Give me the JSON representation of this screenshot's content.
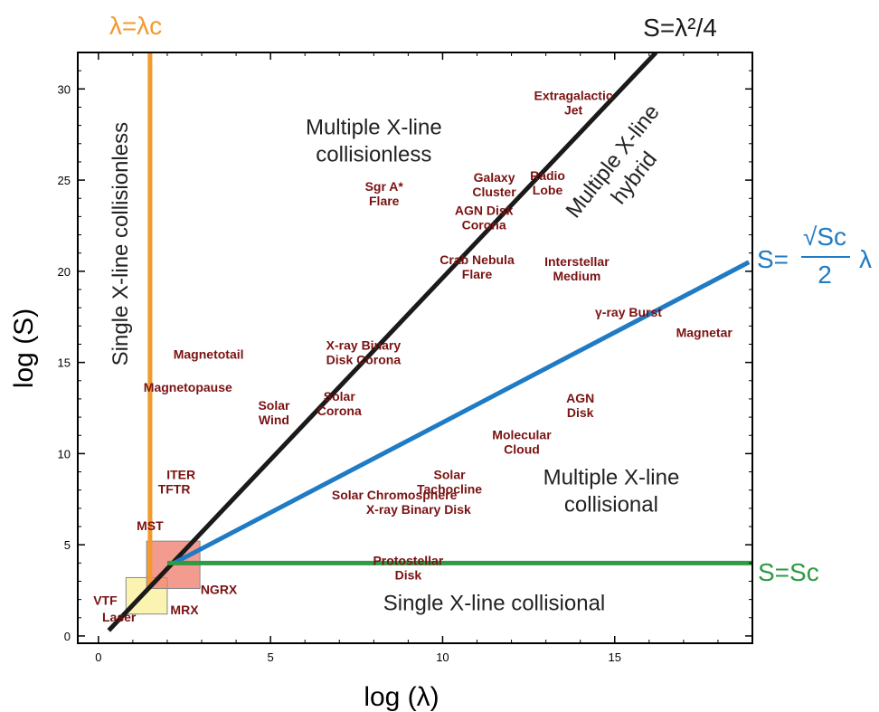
{
  "chart_data": {
    "type": "line",
    "xlabel": "log (λ)",
    "ylabel": "log (S)",
    "xlim": [
      0,
      19
    ],
    "ylim": [
      0,
      32
    ],
    "xticks": [
      0,
      5,
      10,
      15
    ],
    "yticks": [
      0,
      5,
      10,
      15,
      20,
      25,
      30
    ],
    "grid": false,
    "colors": {
      "lambda_c": "#f39a2b",
      "s_lambda2": "#1a1a1a",
      "s_sqrt": "#1f7bc4",
      "s_c": "#2f9a44",
      "objects": "#7a1212",
      "region_red": "#f07a6a",
      "region_yellow": "#fbf3a8"
    },
    "series": [
      {
        "key": "lambda_c",
        "label": "λ=λc",
        "x": [
          1.5,
          1.5
        ],
        "y": [
          2.6,
          32
        ]
      },
      {
        "key": "s_lambda2",
        "label": "S=λ²/4",
        "x": [
          0.3,
          16.2
        ],
        "y": [
          0.3,
          32
        ]
      },
      {
        "key": "s_sqrt",
        "label_prefix": "S=",
        "label_num": "√Sc",
        "label_den": "2",
        "label_suffix": "λ",
        "x": [
          2.2,
          18.9
        ],
        "y": [
          4.0,
          20.5
        ]
      },
      {
        "key": "s_c",
        "label": "S=Sc",
        "x": [
          2.0,
          19.0
        ],
        "y": [
          4.0,
          4.0
        ]
      }
    ],
    "shaded_regions": [
      {
        "key": "region_yellow",
        "x": [
          0.8,
          2.0
        ],
        "y": [
          1.2,
          3.2
        ]
      },
      {
        "key": "region_red",
        "x": [
          1.4,
          2.95
        ],
        "y": [
          2.6,
          5.2
        ]
      }
    ],
    "regions": [
      {
        "lines": [
          "Multiple X-line",
          "collisionless"
        ],
        "x": 8.0,
        "y": 27.5
      },
      {
        "lines": [
          "Single X-line collisionless"
        ],
        "x": 0.85,
        "y": 21.5,
        "rotate": -90
      },
      {
        "lines": [
          "Multiple X-line",
          "hybrid"
        ],
        "x": 15.1,
        "y": 25.8,
        "rotate": -52
      },
      {
        "lines": [
          "Multiple X-line",
          "collisional"
        ],
        "x": 14.9,
        "y": 8.3
      },
      {
        "lines": [
          "Single X-line collisional"
        ],
        "x": 11.5,
        "y": 1.4
      }
    ],
    "objects": [
      {
        "lines": [
          "Extragalactic",
          "Jet"
        ],
        "x": 13.8,
        "y": 29.4,
        "align": "end"
      },
      {
        "lines": [
          "Galaxy",
          "Cluster"
        ],
        "x": 11.5,
        "y": 24.9
      },
      {
        "lines": [
          "Radio",
          "Lobe"
        ],
        "x": 13.05,
        "y": 25.0,
        "align": "end"
      },
      {
        "lines": [
          "Sgr A*",
          "Flare"
        ],
        "x": 8.3,
        "y": 24.4
      },
      {
        "lines": [
          "AGN Disk",
          "Corona"
        ],
        "x": 11.2,
        "y": 23.1
      },
      {
        "lines": [
          "Crab Nebula",
          "Flare"
        ],
        "x": 11.0,
        "y": 20.4
      },
      {
        "lines": [
          "Interstellar",
          "Medium"
        ],
        "x": 13.9,
        "y": 20.3
      },
      {
        "lines": [
          "γ-ray Burst"
        ],
        "x": 15.4,
        "y": 17.5
      },
      {
        "lines": [
          "Magnetar"
        ],
        "x": 17.6,
        "y": 16.4
      },
      {
        "lines": [
          "X-ray Binary",
          "Disk Corona"
        ],
        "x": 7.7,
        "y": 15.7
      },
      {
        "lines": [
          "Magnetotail"
        ],
        "x": 3.2,
        "y": 15.2
      },
      {
        "lines": [
          "Magnetopause"
        ],
        "x": 2.6,
        "y": 13.4
      },
      {
        "lines": [
          "Solar",
          "Corona"
        ],
        "x": 7.0,
        "y": 12.9
      },
      {
        "lines": [
          "Solar",
          "Wind"
        ],
        "x": 5.1,
        "y": 12.4
      },
      {
        "lines": [
          "AGN",
          "Disk"
        ],
        "x": 14.0,
        "y": 12.8
      },
      {
        "lines": [
          "Molecular",
          "Cloud"
        ],
        "x": 12.3,
        "y": 10.8
      },
      {
        "lines": [
          "Solar",
          "Tachocline"
        ],
        "x": 10.2,
        "y": 8.6
      },
      {
        "lines": [
          "Solar Chromosphere"
        ],
        "x": 8.6,
        "y": 7.5
      },
      {
        "lines": [
          "X-ray Binary Disk"
        ],
        "x": 9.3,
        "y": 6.7
      },
      {
        "lines": [
          "ITER"
        ],
        "x": 2.4,
        "y": 8.6
      },
      {
        "lines": [
          "TFTR"
        ],
        "x": 2.2,
        "y": 7.8
      },
      {
        "lines": [
          "MST"
        ],
        "x": 1.5,
        "y": 5.8
      },
      {
        "lines": [
          "Protostellar",
          "Disk"
        ],
        "x": 9.0,
        "y": 3.9
      },
      {
        "lines": [
          "NGRX"
        ],
        "x": 3.5,
        "y": 2.3
      },
      {
        "lines": [
          "MRX"
        ],
        "x": 2.5,
        "y": 1.2
      },
      {
        "lines": [
          "VTF"
        ],
        "x": 0.2,
        "y": 1.7
      },
      {
        "lines": [
          "Laser"
        ],
        "x": 0.6,
        "y": 0.8
      }
    ]
  }
}
